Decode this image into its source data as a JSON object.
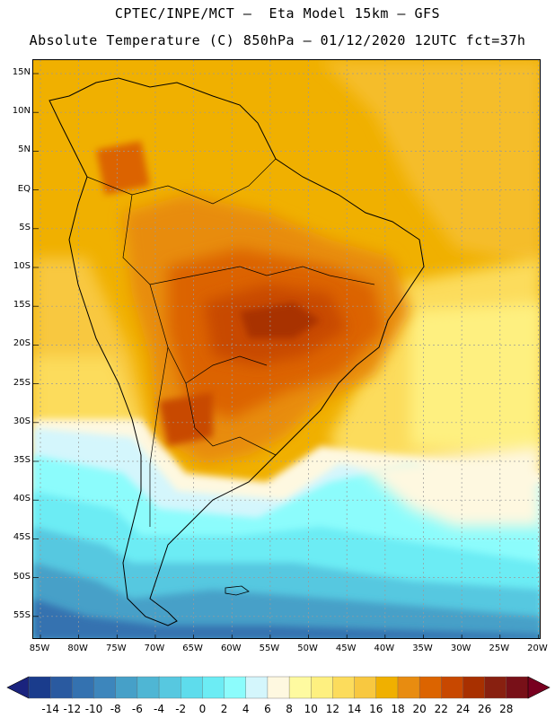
{
  "title_line1": "CPTEC/INPE/MCT –  Eta Model 15km – GFS",
  "title_line2": "Absolute Temperature (C) 850hPa – 01/12/2020 12UTC fct=37h",
  "latitude_labels": [
    "15N",
    "10N",
    "5N",
    "EQ",
    "5S",
    "10S",
    "15S",
    "20S",
    "25S",
    "30S",
    "35S",
    "40S",
    "45S",
    "50S",
    "55S"
  ],
  "longitude_labels": [
    "85W",
    "80W",
    "75W",
    "70W",
    "65W",
    "60W",
    "55W",
    "50W",
    "45W",
    "40W",
    "35W",
    "30W",
    "25W",
    "20W"
  ],
  "colorbar": {
    "labels": [
      "-14",
      "-12",
      "-10",
      "-8",
      "-6",
      "-4",
      "-2",
      "0",
      "2",
      "4",
      "6",
      "8",
      "10",
      "12",
      "14",
      "16",
      "18",
      "20",
      "22",
      "24",
      "26",
      "28"
    ],
    "colors": [
      "#1a3c8c",
      "#2a5aa0",
      "#3472b0",
      "#3d86bc",
      "#46a0c8",
      "#4fb6d4",
      "#57c8e0",
      "#5edcec",
      "#6cecf4",
      "#8cfcfc",
      "#d4f6fc",
      "#fef8e0",
      "#fefaa0",
      "#fef080",
      "#fcdc5c",
      "#f8c840",
      "#f0b000",
      "#e88c10",
      "#dc6400",
      "#c84800",
      "#a83000",
      "#882010",
      "#781018"
    ],
    "low_arrow_color": "#1a237e",
    "high_arrow_color": "#780020"
  }
}
